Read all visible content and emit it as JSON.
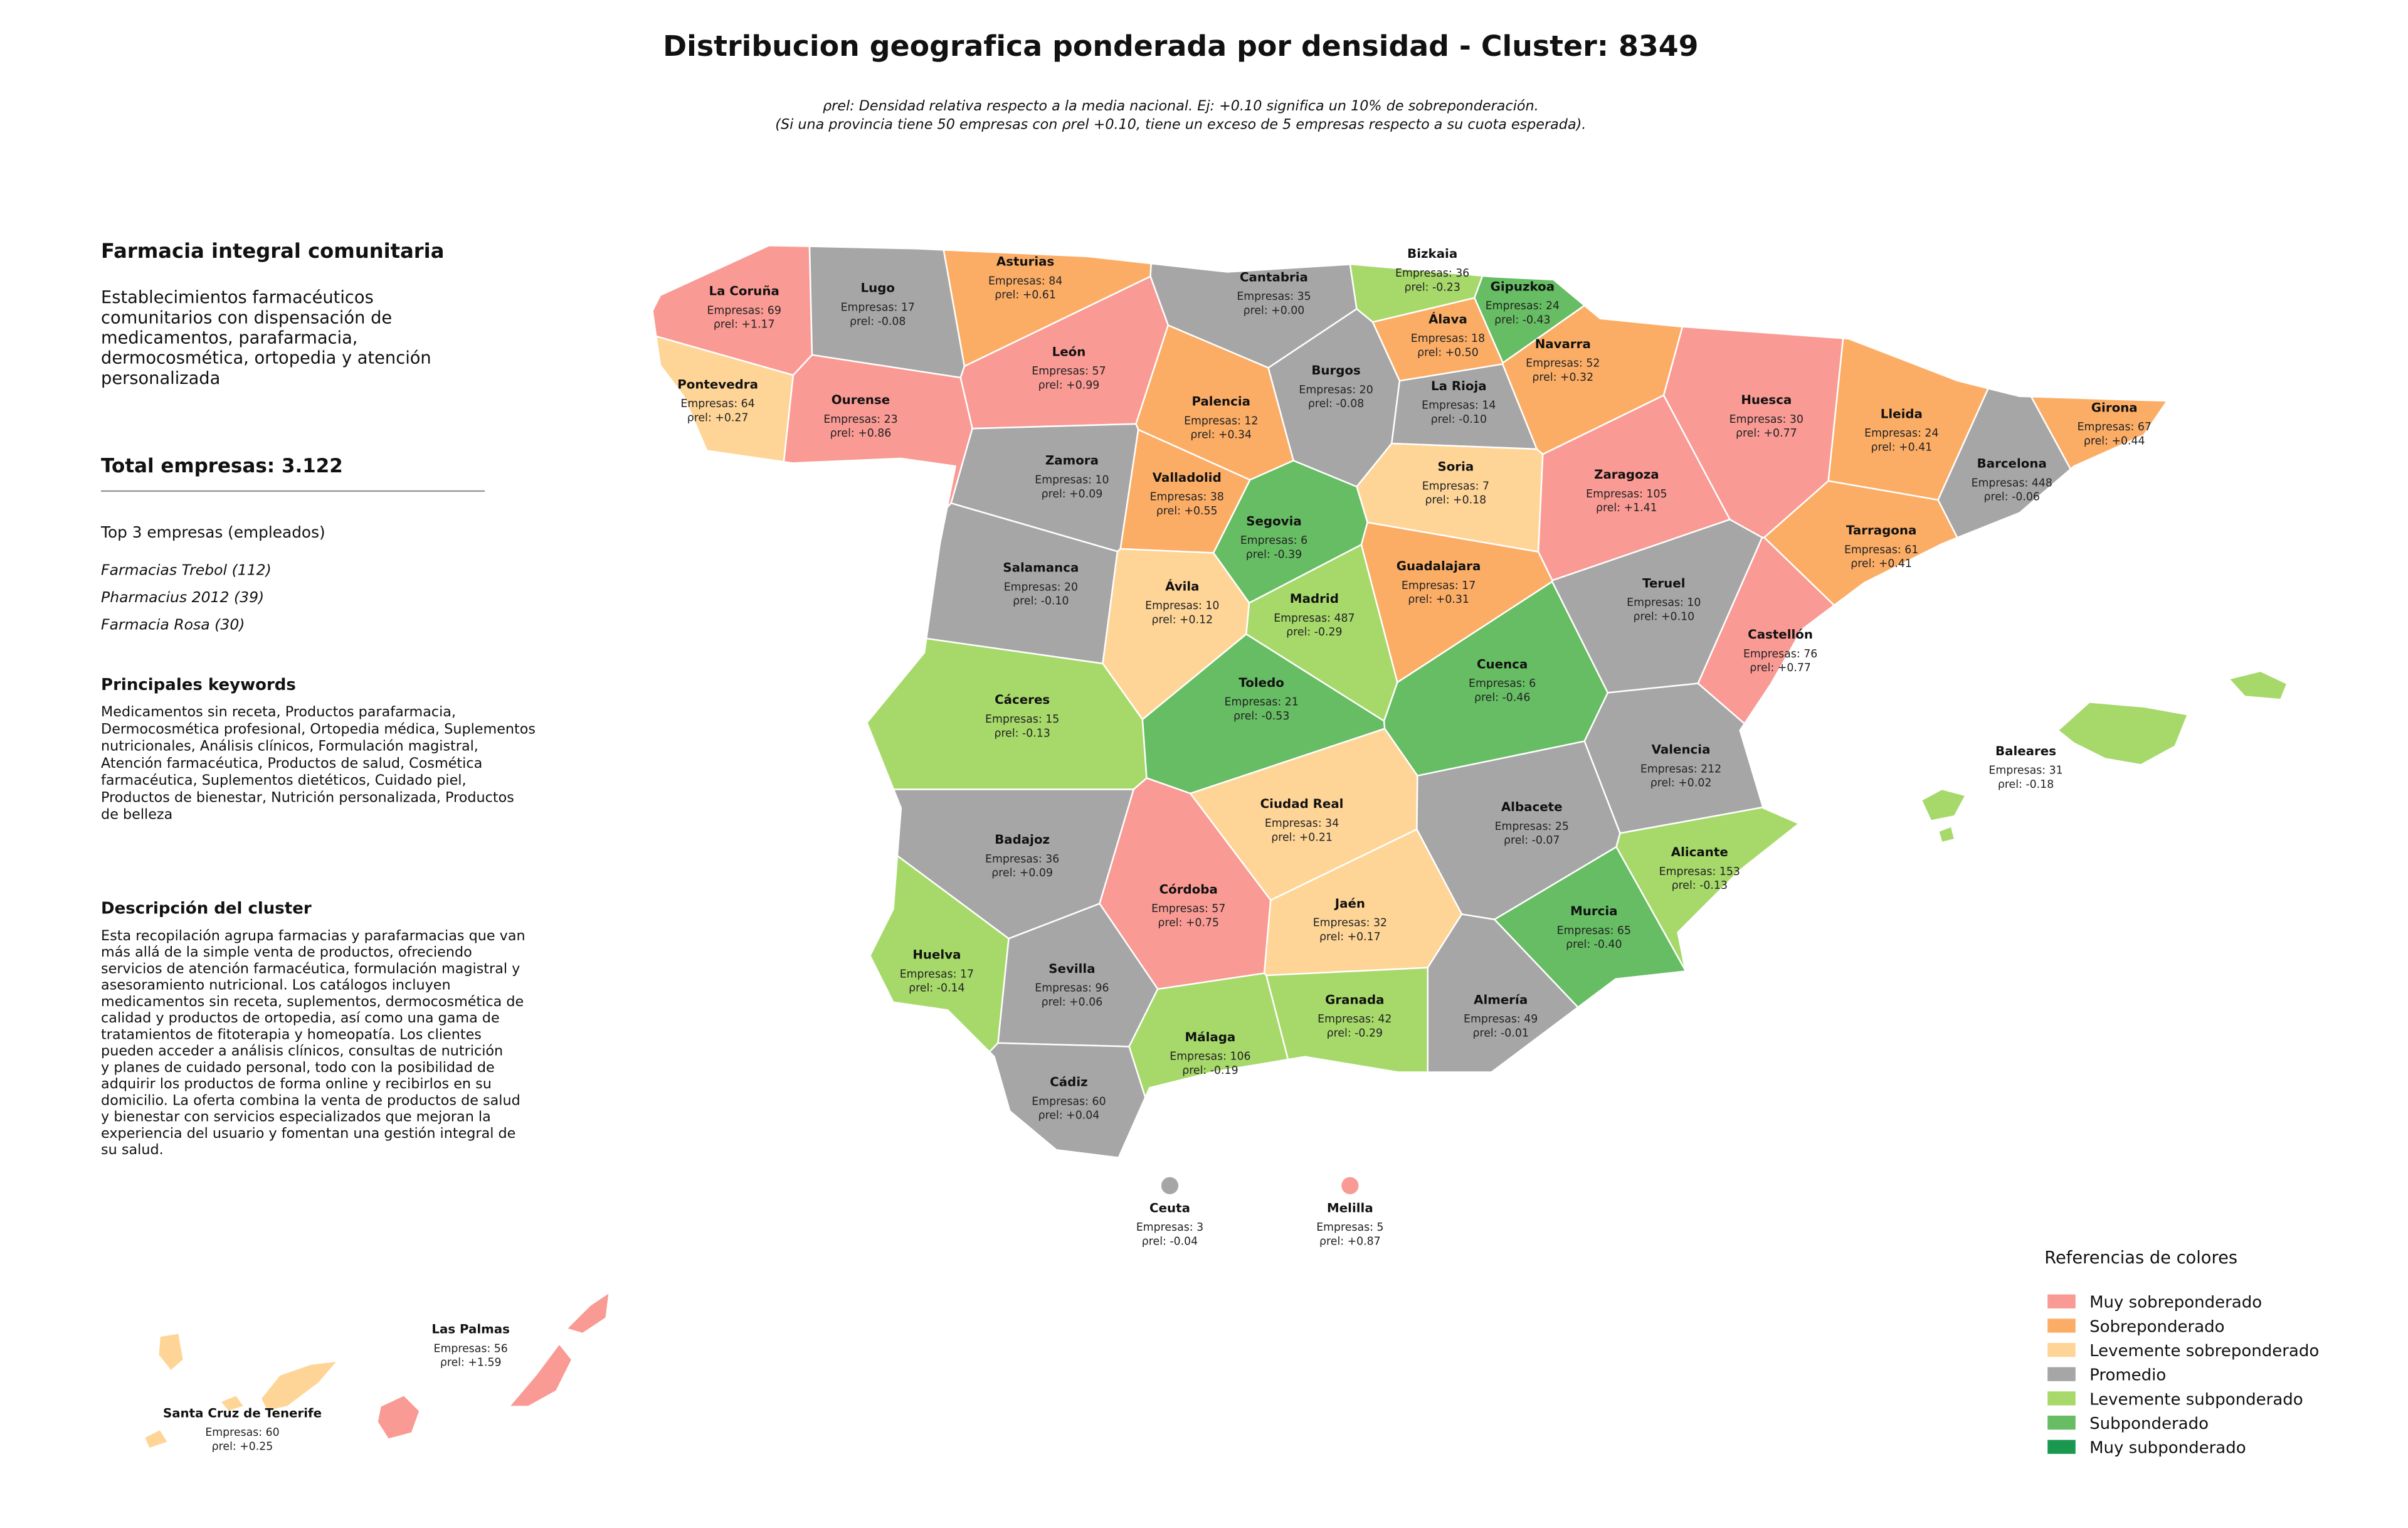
{
  "header": {
    "title": "Distribucion geografica ponderada por densidad - Cluster: 8349",
    "subtitle": [
      "ρrel: Densidad relativa respecto a la media nacional. Ej: +0.10 significa un 10% de sobreponderación.",
      "(Si una provincia tiene 50 empresas con ρrel +0.10, tiene un exceso de 5 empresas respecto a su cuota esperada)."
    ]
  },
  "panel": {
    "name": "Farmacia integral comunitaria",
    "summary": [
      "Establecimientos farmacéuticos",
      "comunitarios con dispensación de",
      "medicamentos, parafarmacia,",
      "dermocosmética, ortopedia y atención",
      "personalizada"
    ],
    "total": "Total empresas: 3.122",
    "top_title": "Top 3 empresas (empleados)",
    "top": [
      "Farmacias Trebol (112)",
      "Pharmacius 2012 (39)",
      "Farmacia Rosa (30)"
    ],
    "keywords_title": "Principales keywords",
    "keywords": [
      "Medicamentos sin receta, Productos parafarmacia,",
      "Dermocosmética profesional, Ortopedia médica, Suplementos",
      "nutricionales, Análisis clínicos, Formulación magistral,",
      "Atención farmacéutica, Productos de salud, Cosmética",
      "farmacéutica, Suplementos dietéticos, Cuidado piel,",
      "Productos de bienestar, Nutrición personalizada, Productos",
      "de belleza"
    ],
    "description_title": "Descripción del cluster",
    "description": [
      "Esta recopilación agrupa farmacias y parafarmacias que van",
      "más allá de la simple venta de productos, ofreciendo",
      "servicios de atención farmacéutica, formulación magistral y",
      "asesoramiento nutricional. Los catálogos incluyen",
      "medicamentos sin receta, suplementos, dermocosmética de",
      "calidad y productos de ortopedia, así como una gama de",
      "tratamientos de fitoterapia y homeopatía. Los clientes",
      "pueden acceder a análisis clínicos, consultas de nutrición",
      "y planes de cuidado personal, todo con la posibilidad de",
      "adquirir los productos de forma online y recibirlos en su",
      "domicilio. La oferta combina la venta de productos de salud",
      "y bienestar con servicios especializados que mejoran la",
      "experiencia del usuario y fomentan una gestión integral de",
      "su salud."
    ]
  },
  "legend": {
    "title": "Referencias de colores",
    "entries": [
      {
        "label": "Muy sobreponderado",
        "color": "#f99a94"
      },
      {
        "label": "Sobreponderado",
        "color": "#fbad66"
      },
      {
        "label": "Levemente sobreponderado",
        "color": "#fed597"
      },
      {
        "label": "Promedio",
        "color": "#a6a6a6"
      },
      {
        "label": "Levemente subponderado",
        "color": "#a6d96a"
      },
      {
        "label": "Subponderado",
        "color": "#66bd63"
      },
      {
        "label": "Muy subponderado",
        "color": "#1a9850"
      }
    ]
  },
  "provinces": [
    {
      "name": "La Coruña",
      "count": "Empresas: 69",
      "rho": "ρrel: +1.17",
      "level": 0
    },
    {
      "name": "Lugo",
      "count": "Empresas: 17",
      "rho": "ρrel: -0.08",
      "level": 3
    },
    {
      "name": "Asturias",
      "count": "Empresas: 84",
      "rho": "ρrel: +0.61",
      "level": 1
    },
    {
      "name": "Cantabria",
      "count": "Empresas: 35",
      "rho": "ρrel: +0.00",
      "level": 3
    },
    {
      "name": "Bizkaia",
      "count": "Empresas: 36",
      "rho": "ρrel: -0.23",
      "level": 4
    },
    {
      "name": "Gipuzkoa",
      "count": "Empresas: 24",
      "rho": "ρrel: -0.43",
      "level": 5
    },
    {
      "name": "Álava",
      "count": "Empresas: 18",
      "rho": "ρrel: +0.50",
      "level": 1
    },
    {
      "name": "Navarra",
      "count": "Empresas: 52",
      "rho": "ρrel: +0.32",
      "level": 1
    },
    {
      "name": "Pontevedra",
      "count": "Empresas: 64",
      "rho": "ρrel: +0.27",
      "level": 2
    },
    {
      "name": "Ourense",
      "count": "Empresas: 23",
      "rho": "ρrel: +0.86",
      "level": 0
    },
    {
      "name": "León",
      "count": "Empresas: 57",
      "rho": "ρrel: +0.99",
      "level": 0
    },
    {
      "name": "Palencia",
      "count": "Empresas: 12",
      "rho": "ρrel: +0.34",
      "level": 1
    },
    {
      "name": "Burgos",
      "count": "Empresas: 20",
      "rho": "ρrel: -0.08",
      "level": 3
    },
    {
      "name": "La Rioja",
      "count": "Empresas: 14",
      "rho": "ρrel: -0.10",
      "level": 3
    },
    {
      "name": "Huesca",
      "count": "Empresas: 30",
      "rho": "ρrel: +0.77",
      "level": 0
    },
    {
      "name": "Lleida",
      "count": "Empresas: 24",
      "rho": "ρrel: +0.41",
      "level": 1
    },
    {
      "name": "Girona",
      "count": "Empresas: 67",
      "rho": "ρrel: +0.44",
      "level": 1
    },
    {
      "name": "Zamora",
      "count": "Empresas: 10",
      "rho": "ρrel: +0.09",
      "level": 3
    },
    {
      "name": "Valladolid",
      "count": "Empresas: 38",
      "rho": "ρrel: +0.55",
      "level": 1
    },
    {
      "name": "Soria",
      "count": "Empresas: 7",
      "rho": "ρrel: +0.18",
      "level": 2
    },
    {
      "name": "Zaragoza",
      "count": "Empresas: 105",
      "rho": "ρrel: +1.41",
      "level": 0
    },
    {
      "name": "Barcelona",
      "count": "Empresas: 448",
      "rho": "ρrel: -0.06",
      "level": 3
    },
    {
      "name": "Tarragona",
      "count": "Empresas: 61",
      "rho": "ρrel: +0.41",
      "level": 1
    },
    {
      "name": "Segovia",
      "count": "Empresas: 6",
      "rho": "ρrel: -0.39",
      "level": 5
    },
    {
      "name": "Salamanca",
      "count": "Empresas: 20",
      "rho": "ρrel: -0.10",
      "level": 3
    },
    {
      "name": "Ávila",
      "count": "Empresas: 10",
      "rho": "ρrel: +0.12",
      "level": 2
    },
    {
      "name": "Madrid",
      "count": "Empresas: 487",
      "rho": "ρrel: -0.29",
      "level": 4
    },
    {
      "name": "Guadalajara",
      "count": "Empresas: 17",
      "rho": "ρrel: +0.31",
      "level": 1
    },
    {
      "name": "Teruel",
      "count": "Empresas: 10",
      "rho": "ρrel: +0.10",
      "level": 3
    },
    {
      "name": "Castellón",
      "count": "Empresas: 76",
      "rho": "ρrel: +0.77",
      "level": 0
    },
    {
      "name": "Cáceres",
      "count": "Empresas: 15",
      "rho": "ρrel: -0.13",
      "level": 4
    },
    {
      "name": "Toledo",
      "count": "Empresas: 21",
      "rho": "ρrel: -0.53",
      "level": 5
    },
    {
      "name": "Cuenca",
      "count": "Empresas: 6",
      "rho": "ρrel: -0.46",
      "level": 5
    },
    {
      "name": "Valencia",
      "count": "Empresas: 212",
      "rho": "ρrel: +0.02",
      "level": 3
    },
    {
      "name": "Baleares",
      "count": "Empresas: 31",
      "rho": "ρrel: -0.18",
      "level": 4
    },
    {
      "name": "Badajoz",
      "count": "Empresas: 36",
      "rho": "ρrel: +0.09",
      "level": 3
    },
    {
      "name": "Ciudad Real",
      "count": "Empresas: 34",
      "rho": "ρrel: +0.21",
      "level": 2
    },
    {
      "name": "Albacete",
      "count": "Empresas: 25",
      "rho": "ρrel: -0.07",
      "level": 3
    },
    {
      "name": "Alicante",
      "count": "Empresas: 153",
      "rho": "ρrel: -0.13",
      "level": 4
    },
    {
      "name": "Córdoba",
      "count": "Empresas: 57",
      "rho": "ρrel: +0.75",
      "level": 0
    },
    {
      "name": "Jaén",
      "count": "Empresas: 32",
      "rho": "ρrel: +0.17",
      "level": 2
    },
    {
      "name": "Murcia",
      "count": "Empresas: 65",
      "rho": "ρrel: -0.40",
      "level": 5
    },
    {
      "name": "Huelva",
      "count": "Empresas: 17",
      "rho": "ρrel: -0.14",
      "level": 4
    },
    {
      "name": "Sevilla",
      "count": "Empresas: 96",
      "rho": "ρrel: +0.06",
      "level": 3
    },
    {
      "name": "Granada",
      "count": "Empresas: 42",
      "rho": "ρrel: -0.29",
      "level": 4
    },
    {
      "name": "Almería",
      "count": "Empresas: 49",
      "rho": "ρrel: -0.01",
      "level": 3
    },
    {
      "name": "Málaga",
      "count": "Empresas: 106",
      "rho": "ρrel: -0.19",
      "level": 4
    },
    {
      "name": "Cádiz",
      "count": "Empresas: 60",
      "rho": "ρrel: +0.04",
      "level": 3
    },
    {
      "name": "Ceuta",
      "count": "Empresas: 3",
      "rho": "ρrel: -0.04",
      "level": 3
    },
    {
      "name": "Melilla",
      "count": "Empresas: 5",
      "rho": "ρrel: +0.87",
      "level": 0
    },
    {
      "name": "Las Palmas",
      "count": "Empresas: 56",
      "rho": "ρrel: +1.59",
      "level": 0
    },
    {
      "name": "Santa Cruz de Tenerife",
      "count": "Empresas: 60",
      "rho": "ρrel: +0.25",
      "level": 2
    }
  ]
}
